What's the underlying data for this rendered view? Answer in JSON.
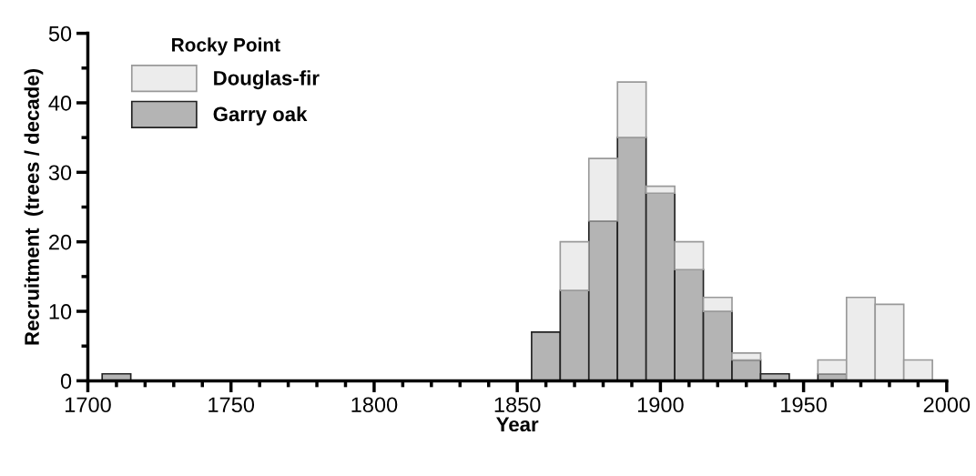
{
  "chart_data": {
    "type": "bar",
    "stacked": true,
    "xlabel": "Year",
    "ylabel": "Recruitment  (trees / decade)",
    "legend_title": "Rocky Point",
    "legend": "top left",
    "x": [
      1710,
      1720,
      1730,
      1740,
      1750,
      1760,
      1770,
      1780,
      1790,
      1800,
      1810,
      1820,
      1830,
      1840,
      1850,
      1860,
      1870,
      1880,
      1890,
      1900,
      1910,
      1920,
      1930,
      1940,
      1950,
      1960,
      1970,
      1980,
      1990
    ],
    "series": [
      {
        "name": "Garry oak",
        "color": "#b4b4b4",
        "values": [
          1,
          0,
          0,
          0,
          0,
          0,
          0,
          0,
          0,
          0,
          0,
          0,
          0,
          0,
          0,
          7,
          13,
          23,
          35,
          27,
          16,
          10,
          3,
          1,
          0,
          1,
          0,
          0,
          0
        ]
      },
      {
        "name": "Douglas-fir",
        "color": "#ececec",
        "values": [
          0,
          0,
          0,
          0,
          0,
          0,
          0,
          0,
          0,
          0,
          0,
          0,
          0,
          0,
          0,
          0,
          7,
          9,
          8,
          1,
          4,
          2,
          1,
          0,
          0,
          2,
          12,
          11,
          3
        ]
      }
    ],
    "xlim": [
      1700,
      2000
    ],
    "xticks": [
      1700,
      {
        "value": 1710,
        "label": null
      },
      {
        "value": 1720,
        "label": null
      },
      {
        "value": 1730,
        "label": null
      },
      {
        "value": 1740,
        "label": null
      },
      1750,
      {
        "value": 1760,
        "label": null
      },
      {
        "value": 1770,
        "label": null
      },
      {
        "value": 1780,
        "label": null
      },
      {
        "value": 1790,
        "label": null
      },
      1800,
      {
        "value": 1810,
        "label": null
      },
      {
        "value": 1820,
        "label": null
      },
      {
        "value": 1830,
        "label": null
      },
      {
        "value": 1840,
        "label": null
      },
      1850,
      {
        "value": 1860,
        "label": null
      },
      {
        "value": 1870,
        "label": null
      },
      {
        "value": 1880,
        "label": null
      },
      {
        "value": 1890,
        "label": null
      },
      1900,
      {
        "value": 1910,
        "label": null
      },
      {
        "value": 1920,
        "label": null
      },
      {
        "value": 1930,
        "label": null
      },
      {
        "value": 1940,
        "label": null
      },
      1950,
      {
        "value": 1960,
        "label": null
      },
      {
        "value": 1970,
        "label": null
      },
      {
        "value": 1980,
        "label": null
      },
      {
        "value": 1990,
        "label": null
      },
      2000
    ],
    "ylim": [
      0,
      50
    ],
    "yticks": [
      0,
      {
        "value": 5,
        "label": null
      },
      10,
      {
        "value": 15,
        "label": null
      },
      20,
      {
        "value": 25,
        "label": null
      },
      30,
      {
        "value": 35,
        "label": null
      },
      40,
      {
        "value": 45,
        "label": null
      },
      50
    ],
    "grid": false
  }
}
